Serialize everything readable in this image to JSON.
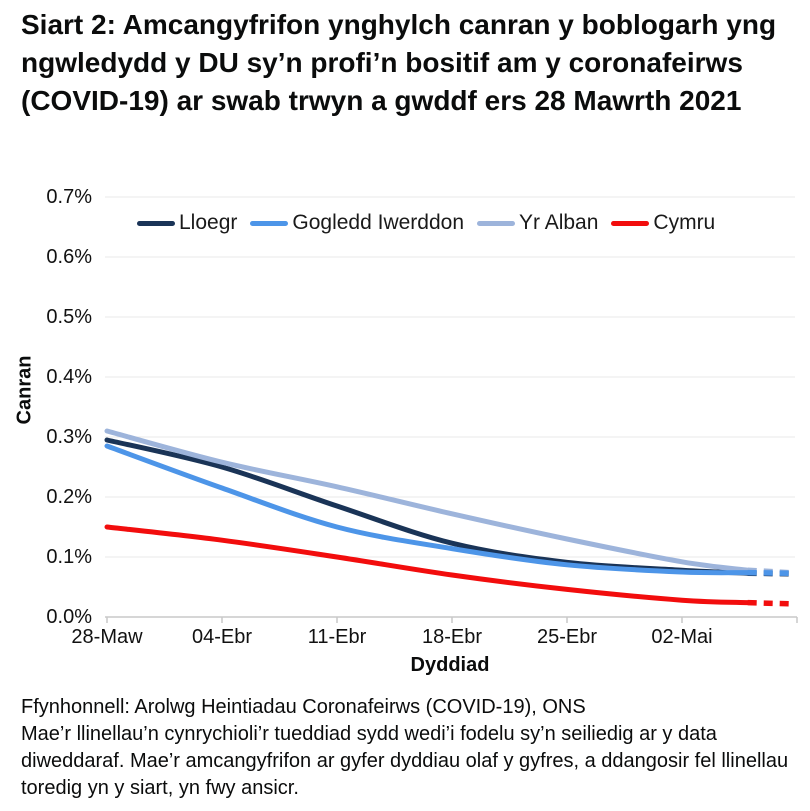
{
  "title": "Siart 2: Amcangyfrifon ynghylch canran y boblogarh yng ngwledydd y DU sy’n profi’n bositif am y coronafeirws (COVID-19) ar swab trwyn a gwddf ers 28 Mawrth 2021",
  "footer": {
    "source": "Ffynhonnell: Arolwg Heintiadau Coronafeirws (COVID-19), ONS",
    "note": "Mae’r llinellau’n cynrychioli’r tueddiad sydd wedi’i fodelu sy’n seiliedig ar y data diweddaraf. Mae’r amcangyfrifon ar gyfer dyddiau olaf y gyfres, a ddangosir fel llinellau toredig yn y siart, yn fwy ansicr."
  },
  "chart_data": {
    "type": "line",
    "title": "",
    "xlabel": "Dyddiad",
    "ylabel": "Canran",
    "unit": "%",
    "ylim": [
      0.0,
      0.7
    ],
    "grid": "horizontal-light-gray",
    "legend_position": "top-inside",
    "y_ticks": [
      "0.0%",
      "0.1%",
      "0.2%",
      "0.3%",
      "0.4%",
      "0.5%",
      "0.6%",
      "0.7%"
    ],
    "x_tick_labels": [
      "28-Maw",
      "04-Ebr",
      "11-Ebr",
      "18-Ebr",
      "25-Ebr",
      "02-Mai"
    ],
    "x_tick_days": [
      0,
      7,
      14,
      21,
      28,
      35
    ],
    "x_days": [
      0,
      7,
      14,
      21,
      28,
      35,
      39,
      41.5
    ],
    "dashed_from_day": 39,
    "dashed_note": "last few days of each series drawn as dashed line (more uncertain)",
    "series": [
      {
        "name": "Lloegr",
        "color": "#1a3457",
        "values": [
          0.295,
          0.25,
          0.185,
          0.123,
          0.091,
          0.078,
          0.073,
          0.072
        ]
      },
      {
        "name": "Gogledd Iwerddon",
        "color": "#4d95e8",
        "values": [
          0.285,
          0.215,
          0.15,
          0.114,
          0.087,
          0.075,
          0.074,
          0.073
        ]
      },
      {
        "name": "Yr Alban",
        "color": "#9db4db",
        "values": [
          0.31,
          0.258,
          0.217,
          0.172,
          0.13,
          0.092,
          0.078,
          0.074
        ]
      },
      {
        "name": "Cymru",
        "color": "#f20d0d",
        "values": [
          0.15,
          0.128,
          0.1,
          0.07,
          0.046,
          0.028,
          0.024,
          0.022
        ]
      }
    ],
    "draw_order": [
      0,
      2,
      1,
      3
    ],
    "grid_color": "#e8e8e8",
    "axis_color": "#c9c9c9"
  }
}
